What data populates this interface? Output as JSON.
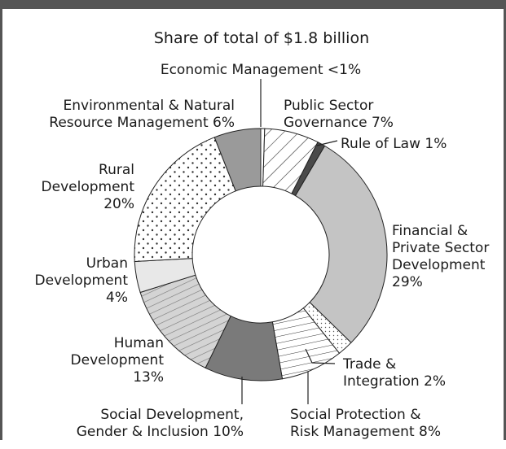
{
  "chart_data": {
    "type": "pie",
    "donut": true,
    "title": "Share of total of $1.8 billion",
    "slices": [
      {
        "label": "Economic Management <1%",
        "value": 0.5,
        "fill": "#ffffff",
        "pattern": "none"
      },
      {
        "label": "Public Sector Governance 7%",
        "value": 7,
        "fill": "#ffffff",
        "pattern": "diag-wide"
      },
      {
        "label": "Rule of Law 1%",
        "value": 1,
        "fill": "#4a4a4a",
        "pattern": "solid"
      },
      {
        "label": "Financial & Private Sector Development 29%",
        "value": 29,
        "fill": "#c4c4c4",
        "pattern": "solid"
      },
      {
        "label": "Trade & Integration 2%",
        "value": 2,
        "fill": "#ffffff",
        "pattern": "fine-dots"
      },
      {
        "label": "Social Protection & Risk Management 8%",
        "value": 8,
        "fill": "#ffffff",
        "pattern": "horizontal"
      },
      {
        "label": "Social Development, Gender & Inclusion 10%",
        "value": 10,
        "fill": "#7a7a7a",
        "pattern": "solid"
      },
      {
        "label": "Human Development 13%",
        "value": 13,
        "fill": "#d0d0d0",
        "pattern": "diag-gray"
      },
      {
        "label": "Urban Development 4%",
        "value": 4,
        "fill": "#e8e8e8",
        "pattern": "solid"
      },
      {
        "label": "Rural Development 20%",
        "value": 20,
        "fill": "#ffffff",
        "pattern": "dots"
      },
      {
        "label": "Environmental & Natural Resource Management 6%",
        "value": 6,
        "fill": "#9a9a9a",
        "pattern": "solid"
      }
    ],
    "label_lines": [
      [
        "Economic Management <1%"
      ],
      [
        "Public Sector",
        "Governance 7%"
      ],
      [
        "Rule of Law 1%"
      ],
      [
        "Financial &",
        "Private Sector",
        "Development",
        "29%"
      ],
      [
        "Trade &",
        "Integration 2%"
      ],
      [
        "Social Protection &",
        "Risk Management 8%"
      ],
      [
        "Social Development,",
        "Gender & Inclusion 10%"
      ],
      [
        "Human",
        "Development",
        "13%"
      ],
      [
        "Urban",
        "Development",
        "4%"
      ],
      [
        "Rural",
        "Development",
        "20%"
      ],
      [
        "Environmental & Natural",
        "Resource Management 6%"
      ]
    ]
  }
}
